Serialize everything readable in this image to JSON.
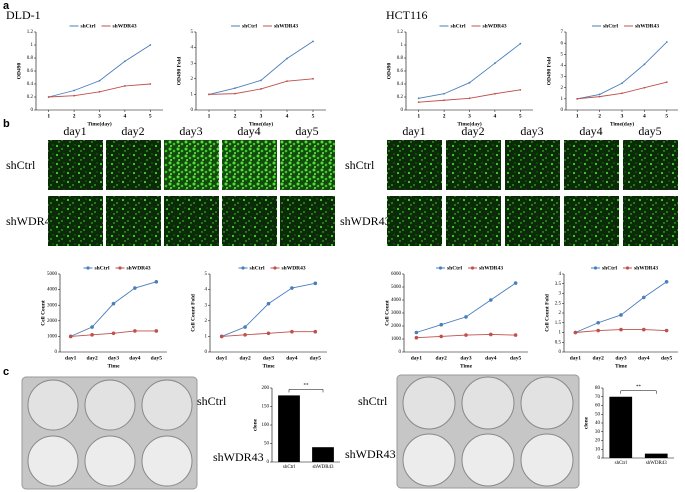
{
  "figure": {
    "panel_labels": [
      "a",
      "b",
      "c"
    ],
    "cell_lines": [
      "DLD-1",
      "HCT116"
    ],
    "days": [
      "day1",
      "day2",
      "day3",
      "day4",
      "day5"
    ],
    "groups": [
      "shCtrl",
      "shWDR43"
    ]
  },
  "chart_data": [
    {
      "type": "line",
      "x": [
        1,
        2,
        3,
        4,
        5
      ],
      "xlim": [
        0.5,
        5.5
      ],
      "xticks": [
        1,
        2,
        3,
        4,
        5
      ],
      "xlabel": "Time(day)",
      "ylabel": "OD490",
      "ylim": [
        0,
        1.2
      ],
      "yticks": [
        0,
        0.2,
        0.4,
        0.6,
        0.8,
        1,
        1.2
      ],
      "marker": "dot",
      "series": [
        {
          "name": "shCtrl",
          "color": "#4a7ebb",
          "values": [
            0.2,
            0.3,
            0.45,
            0.75,
            1.0
          ]
        },
        {
          "name": "shWDR43",
          "color": "#c0504d",
          "values": [
            0.2,
            0.22,
            0.28,
            0.37,
            0.4
          ]
        }
      ]
    },
    {
      "type": "line",
      "x": [
        1,
        2,
        3,
        4,
        5
      ],
      "xlim": [
        0.5,
        5.5
      ],
      "xticks": [
        1,
        2,
        3,
        4,
        5
      ],
      "xlabel": "Time(day)",
      "ylabel": "OD490 Fold",
      "ylim": [
        0,
        5
      ],
      "yticks": [
        0,
        1,
        2,
        3,
        4,
        5
      ],
      "marker": "dot",
      "series": [
        {
          "name": "shCtrl",
          "color": "#4a7ebb",
          "values": [
            1,
            1.4,
            1.9,
            3.3,
            4.4
          ]
        },
        {
          "name": "shWDR43",
          "color": "#c0504d",
          "values": [
            1,
            1.05,
            1.35,
            1.85,
            2.0
          ]
        }
      ]
    },
    {
      "type": "line",
      "x": [
        1,
        2,
        3,
        4,
        5
      ],
      "xlim": [
        0.5,
        5.5
      ],
      "xticks": [
        1,
        2,
        3,
        4,
        5
      ],
      "xlabel": "Time(day)",
      "ylabel": "OD490",
      "ylim": [
        0,
        1.2
      ],
      "yticks": [
        0,
        0.2,
        0.4,
        0.6,
        0.8,
        1,
        1.2
      ],
      "marker": "dot",
      "series": [
        {
          "name": "shCtrl",
          "color": "#4a7ebb",
          "values": [
            0.18,
            0.25,
            0.42,
            0.72,
            1.02
          ]
        },
        {
          "name": "shWDR43",
          "color": "#c0504d",
          "values": [
            0.12,
            0.15,
            0.18,
            0.25,
            0.31
          ]
        }
      ]
    },
    {
      "type": "line",
      "x": [
        1,
        2,
        3,
        4,
        5
      ],
      "xlim": [
        0.5,
        5.5
      ],
      "xticks": [
        1,
        2,
        3,
        4,
        5
      ],
      "xlabel": "Time(day)",
      "ylabel": "OD490 Fold",
      "ylim": [
        0,
        7
      ],
      "yticks": [
        0,
        1,
        2,
        3,
        4,
        5,
        6,
        7
      ],
      "marker": "dot",
      "series": [
        {
          "name": "shCtrl",
          "color": "#4a7ebb",
          "values": [
            1,
            1.4,
            2.4,
            4.1,
            6.1
          ]
        },
        {
          "name": "shWDR43",
          "color": "#c0504d",
          "values": [
            1,
            1.2,
            1.5,
            2.0,
            2.5
          ]
        }
      ]
    },
    {
      "type": "line",
      "categories": [
        "day1",
        "day2",
        "day3",
        "day4",
        "day5"
      ],
      "xlabel": "Time",
      "ylabel": "Cell Count",
      "ylim": [
        0,
        5000
      ],
      "yticks": [
        0,
        1000,
        2000,
        3000,
        4000,
        5000
      ],
      "marker": "circle",
      "series": [
        {
          "name": "shCtrl",
          "color": "#4a7ebb",
          "values": [
            1000,
            1600,
            3100,
            4100,
            4500
          ]
        },
        {
          "name": "shWDR43",
          "color": "#c0504d",
          "values": [
            1000,
            1100,
            1200,
            1350,
            1350
          ]
        }
      ]
    },
    {
      "type": "line",
      "categories": [
        "day1",
        "day2",
        "day3",
        "day4",
        "day5"
      ],
      "xlabel": "Time",
      "ylabel": "Cell Count Fold",
      "ylim": [
        0,
        5
      ],
      "yticks": [
        0,
        1,
        2,
        3,
        4,
        5
      ],
      "marker": "circle",
      "series": [
        {
          "name": "shCtrl",
          "color": "#4a7ebb",
          "values": [
            1,
            1.6,
            3.1,
            4.1,
            4.4
          ]
        },
        {
          "name": "shWDR43",
          "color": "#c0504d",
          "values": [
            1,
            1.1,
            1.2,
            1.3,
            1.3
          ]
        }
      ]
    },
    {
      "type": "line",
      "categories": [
        "day1",
        "day2",
        "day3",
        "day4",
        "day5"
      ],
      "xlabel": "Time",
      "ylabel": "Cell Count",
      "ylim": [
        0,
        6000
      ],
      "yticks": [
        0,
        1000,
        2000,
        3000,
        4000,
        5000,
        6000
      ],
      "marker": "circle",
      "series": [
        {
          "name": "shCtrl",
          "color": "#4a7ebb",
          "values": [
            1500,
            2100,
            2700,
            4000,
            5300
          ]
        },
        {
          "name": "shWDR43",
          "color": "#c0504d",
          "values": [
            1100,
            1200,
            1300,
            1350,
            1300
          ]
        }
      ]
    },
    {
      "type": "line",
      "categories": [
        "day1",
        "day2",
        "day3",
        "day4",
        "day5"
      ],
      "xlabel": "Time",
      "ylabel": "Cell Count Fold",
      "ylim": [
        0,
        4
      ],
      "yticks": [
        0,
        0.5,
        1,
        1.5,
        2,
        2.5,
        3,
        3.5,
        4
      ],
      "marker": "circle",
      "series": [
        {
          "name": "shCtrl",
          "color": "#4a7ebb",
          "values": [
            1,
            1.5,
            1.9,
            2.8,
            3.6
          ]
        },
        {
          "name": "shWDR43",
          "color": "#c0504d",
          "values": [
            1,
            1.1,
            1.15,
            1.15,
            1.1
          ]
        }
      ]
    },
    {
      "type": "bar",
      "categories": [
        "shCtrl",
        "shWDR43"
      ],
      "values": [
        180,
        40
      ],
      "color": "#000000",
      "ylabel": "clone",
      "ylim": [
        0,
        200
      ],
      "yticks": [
        0,
        50,
        100,
        150,
        200
      ],
      "annotation": "**"
    },
    {
      "type": "bar",
      "categories": [
        "shCtrl",
        "shWDR43"
      ],
      "values": [
        70,
        5
      ],
      "color": "#000000",
      "ylabel": "clone",
      "ylim": [
        0,
        80
      ],
      "yticks": [
        0,
        10,
        20,
        30,
        40,
        50,
        60,
        70,
        80
      ],
      "annotation": "**"
    }
  ]
}
